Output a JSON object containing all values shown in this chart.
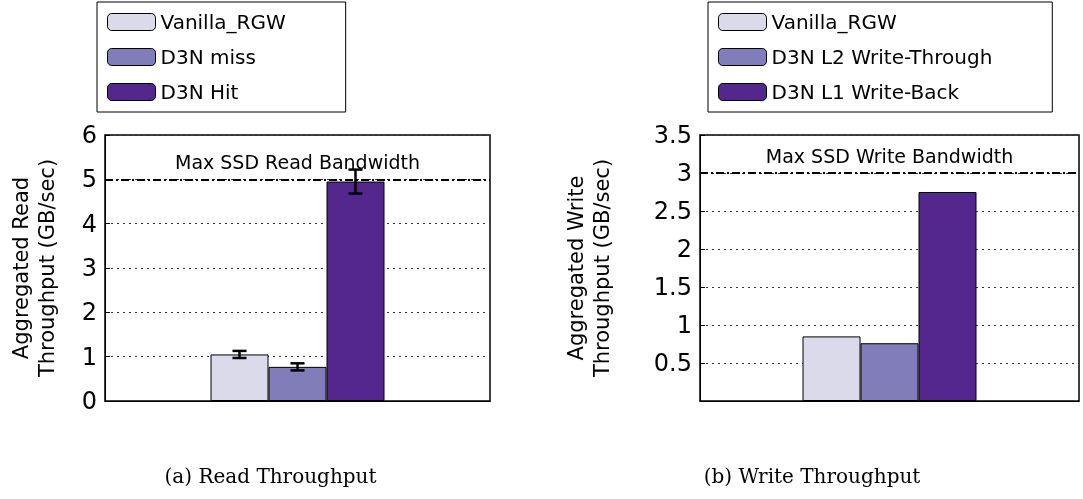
{
  "chart_data": [
    {
      "type": "bar",
      "title": "(a) Read Throughput",
      "ylabel": "Aggregated Read\nThroughput (GB/sec)",
      "categories": [
        null
      ],
      "series": [
        {
          "name": "Vanilla_RGW",
          "color": "#dadaeb",
          "values": [
            1.05
          ],
          "errors": [
            0.08
          ]
        },
        {
          "name": "D3N miss",
          "color": "#807dba",
          "values": [
            0.77
          ],
          "errors": [
            0.08
          ]
        },
        {
          "name": "D3N Hit",
          "color": "#54278f",
          "values": [
            4.95
          ],
          "errors": [
            0.27
          ]
        }
      ],
      "ylim": [
        0,
        6
      ],
      "yticks": [
        0,
        1,
        2,
        3,
        4,
        5,
        6
      ],
      "grid": "y",
      "legend": "top",
      "ref_lines": [
        {
          "axis": "y",
          "value": 5,
          "label": "Max SSD Read Bandwidth",
          "line_style": "dashed"
        }
      ]
    },
    {
      "type": "bar",
      "title": "(b) Write Throughput",
      "ylabel": "Aggregated Write\nThroughput (GB/sec)",
      "categories": [
        null
      ],
      "series": [
        {
          "name": "Vanilla_RGW",
          "color": "#dadaeb",
          "values": [
            0.85
          ]
        },
        {
          "name": "D3N L2 Write-Through",
          "color": "#807dba",
          "values": [
            0.76
          ]
        },
        {
          "name": "D3N L1 Write-Back",
          "color": "#54278f",
          "values": [
            2.75
          ]
        }
      ],
      "ylim": [
        0,
        3.5
      ],
      "yticks": [
        0.5,
        1,
        1.5,
        2,
        2.5,
        3,
        3.5
      ],
      "grid": "y",
      "legend": "top",
      "ref_lines": [
        {
          "axis": "y",
          "value": 3,
          "label": "Max SSD Write Bandwidth",
          "line_style": "dashed"
        }
      ]
    }
  ]
}
